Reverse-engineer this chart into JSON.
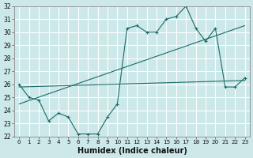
{
  "xlabel": "Humidex (Indice chaleur)",
  "bg_color": "#cce8e8",
  "line_color": "#1a6b6b",
  "grid_color": "#b8d8d8",
  "xlim": [
    -0.5,
    23.5
  ],
  "ylim": [
    22,
    32
  ],
  "yticks": [
    22,
    23,
    24,
    25,
    26,
    27,
    28,
    29,
    30,
    31,
    32
  ],
  "xticks": [
    0,
    1,
    2,
    3,
    4,
    5,
    6,
    7,
    8,
    9,
    10,
    11,
    12,
    13,
    14,
    15,
    16,
    17,
    18,
    19,
    20,
    21,
    22,
    23
  ],
  "zigzag_x": [
    0,
    1,
    2,
    3,
    4,
    5,
    6,
    7,
    8,
    9,
    10,
    11,
    12,
    13,
    14,
    15,
    16,
    17,
    18,
    19,
    20,
    21,
    22,
    23
  ],
  "zigzag_y": [
    26.0,
    25.0,
    24.8,
    23.2,
    23.8,
    23.5,
    22.2,
    22.2,
    22.2,
    23.5,
    24.5,
    30.3,
    30.5,
    30.0,
    30.0,
    31.0,
    31.2,
    32.0,
    30.3,
    29.3,
    30.3,
    25.8,
    25.8,
    26.5
  ],
  "trend1_x": [
    0,
    23
  ],
  "trend1_y": [
    25.8,
    26.3
  ],
  "trend2_x": [
    0,
    23
  ],
  "trend2_y": [
    24.5,
    30.5
  ]
}
